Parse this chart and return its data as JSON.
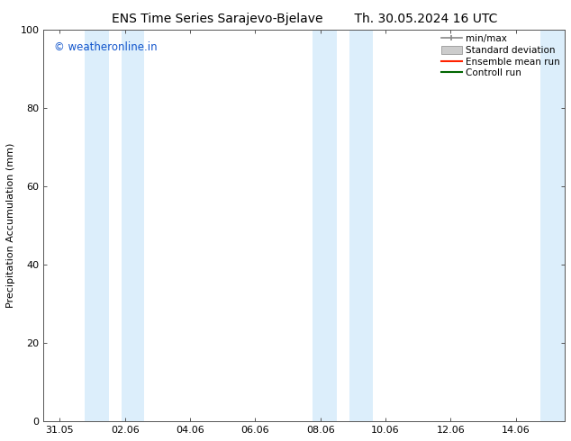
{
  "title_left": "ENS Time Series Sarajevo-Bjelave",
  "title_right": "Th. 30.05.2024 16 UTC",
  "ylabel": "Precipitation Accumulation (mm)",
  "watermark": "© weatheronline.in",
  "watermark_color": "#1155cc",
  "ylim": [
    0,
    100
  ],
  "yticks": [
    0,
    20,
    40,
    60,
    80,
    100
  ],
  "xtick_labels": [
    "31.05",
    "02.06",
    "04.06",
    "06.06",
    "08.06",
    "10.06",
    "12.06",
    "14.06"
  ],
  "xtick_positions": [
    0,
    2,
    4,
    6,
    8,
    10,
    12,
    14
  ],
  "xlim": [
    -0.5,
    15.5
  ],
  "shaded_bands": [
    {
      "x_start": 0.75,
      "x_end": 1.5
    },
    {
      "x_start": 1.9,
      "x_end": 2.6
    },
    {
      "x_start": 7.75,
      "x_end": 8.5
    },
    {
      "x_start": 8.9,
      "x_end": 9.6
    },
    {
      "x_start": 14.75,
      "x_end": 15.5
    }
  ],
  "band_color": "#dceefb",
  "legend_items": [
    {
      "label": "min/max",
      "color": "#aaaaaa",
      "type": "errorbar"
    },
    {
      "label": "Standard deviation",
      "color": "#cccccc",
      "type": "bar"
    },
    {
      "label": "Ensemble mean run",
      "color": "#ff0000",
      "type": "line"
    },
    {
      "label": "Controll run",
      "color": "#008800",
      "type": "line"
    }
  ],
  "background_color": "#ffffff",
  "plot_bg_color": "#ffffff",
  "tick_label_fontsize": 8,
  "axis_label_fontsize": 8,
  "title_fontsize": 10,
  "legend_fontsize": 7.5
}
